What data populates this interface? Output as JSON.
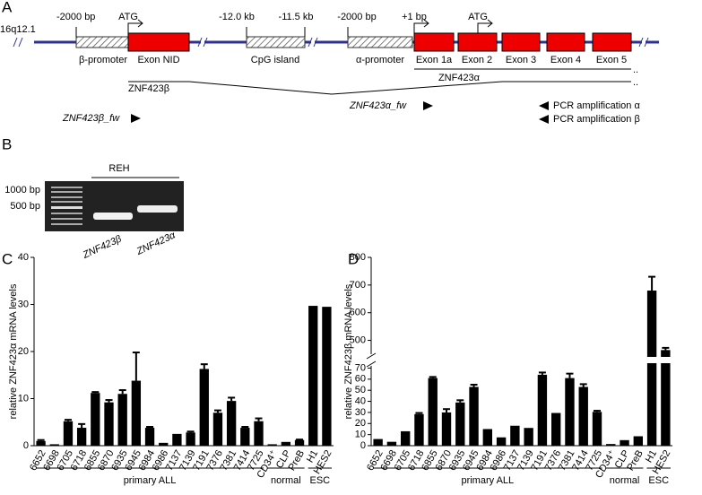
{
  "panel_a": {
    "label": "A",
    "locus": "16q12.1",
    "beta_offset": "-2000 bp",
    "atg_nid": "ATG",
    "beta_promoter": "β-promoter",
    "exon_nid": "Exon NID",
    "cpg_start": "-12.0 kb",
    "cpg_end": "-11.5 kb",
    "cpg_island": "CpG island",
    "alpha_offset": "-2000 bp",
    "alpha_promoter": "α-promoter",
    "tss": "+1 bp",
    "atg_alpha": "ATG",
    "exons": [
      "Exon 1a",
      "Exon 2",
      "Exon 3",
      "Exon 4",
      "Exon 5"
    ],
    "transcript_alpha": "ZNF423α",
    "transcript_beta": "ZNF423β",
    "primer_beta": "ZNF423β_fw",
    "primer_alpha": "ZNF423α_fw",
    "pcr_alpha": "PCR amplification α",
    "pcr_beta": "PCR amplification β"
  },
  "panel_b": {
    "label": "B",
    "ladder": [
      "1000 bp",
      "500 bp"
    ],
    "sample": "REH",
    "lanes": [
      "ZNF423β",
      "ZNF423α"
    ]
  },
  "chart_data": [
    {
      "type": "bar",
      "panel": "C",
      "ylabel": "relative ZNF423α mRNA levels",
      "categories": [
        "6652",
        "6698",
        "6705",
        "6718",
        "6855",
        "6870",
        "6935",
        "6945",
        "6984",
        "6986",
        "7137",
        "7139",
        "7191",
        "7376",
        "7381",
        "7414",
        "7725",
        "CD34⁺",
        "CLP",
        "PreB",
        "H1",
        "HES2"
      ],
      "values": [
        1.0,
        0.3,
        5.2,
        3.8,
        11.2,
        9.2,
        11.0,
        13.8,
        3.8,
        0.6,
        2.5,
        2.8,
        16.3,
        7.0,
        9.5,
        3.8,
        5.2,
        0.3,
        0.8,
        1.2,
        29.7,
        29.5
      ],
      "errors": [
        0.2,
        0,
        0.3,
        0.8,
        0.2,
        0.5,
        0.8,
        6.0,
        0.2,
        0,
        0,
        0.2,
        1.0,
        0.5,
        0.7,
        0.2,
        0.6,
        0,
        0,
        0.1,
        0,
        0
      ],
      "color": "#000000",
      "ylim": [
        0,
        40
      ],
      "yticks": [
        0,
        10,
        20,
        30,
        40
      ],
      "groups": [
        {
          "label": "primary ALL",
          "size": 17
        },
        {
          "label": "normal",
          "size": 3
        },
        {
          "label": "ESC",
          "size": 2
        }
      ]
    },
    {
      "type": "bar",
      "panel": "D",
      "ylabel": "relative ZNF423β mRNA levels",
      "categories": [
        "6652",
        "6698",
        "6705",
        "6718",
        "6855",
        "6870",
        "6935",
        "6945",
        "6984",
        "6986",
        "7137",
        "7139",
        "7191",
        "7376",
        "7381",
        "7414",
        "7725",
        "CD34⁺",
        "CLP",
        "PreB",
        "H1",
        "HES2"
      ],
      "values": [
        6,
        3.5,
        13,
        28.5,
        61,
        30,
        39,
        53,
        15,
        7.5,
        18,
        16,
        64,
        29.5,
        61,
        53,
        30.5,
        1.5,
        5,
        8.5,
        680,
        465
      ],
      "errors": [
        0,
        0,
        0,
        1,
        1,
        3,
        2,
        2,
        0,
        0,
        0,
        0,
        2,
        0,
        4,
        2.5,
        1,
        0,
        0,
        0,
        50,
        8
      ],
      "color": "#000000",
      "ylim": [
        0,
        800
      ],
      "axis_break": [
        72,
        450
      ],
      "yticks": [
        0,
        10,
        20,
        30,
        40,
        50,
        60,
        70,
        500,
        600,
        700,
        800
      ],
      "groups": [
        {
          "label": "primary ALL",
          "size": 17
        },
        {
          "label": "normal",
          "size": 3
        },
        {
          "label": "ESC",
          "size": 2
        }
      ]
    }
  ]
}
